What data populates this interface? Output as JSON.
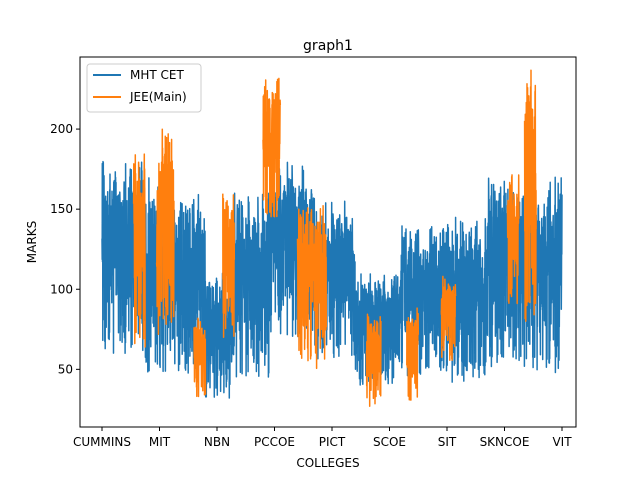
{
  "chart_data": {
    "type": "line",
    "title": "graph1",
    "xlabel": "COLLEGES",
    "ylabel": "MARKS",
    "categories": [
      "CUMMINS",
      "MIT",
      "NBN",
      "PCCOE",
      "PICT",
      "SCOE",
      "SIT",
      "SKNCOE",
      "VIT"
    ],
    "ylim": [
      14,
      245
    ],
    "yticks": [
      50,
      100,
      150,
      200
    ],
    "grid": false,
    "legend_position": "top-left",
    "series": [
      {
        "name": "MHT CET",
        "color": "#1f77b4",
        "segments": [
          {
            "from": 0.0,
            "to": 0.7,
            "low": 60,
            "high": 180
          },
          {
            "from": 0.7,
            "to": 1.3,
            "low": 48,
            "high": 170
          },
          {
            "from": 1.3,
            "to": 1.8,
            "low": 45,
            "high": 160
          },
          {
            "from": 1.8,
            "to": 2.3,
            "low": 32,
            "high": 110
          },
          {
            "from": 2.3,
            "to": 2.9,
            "low": 45,
            "high": 160
          },
          {
            "from": 2.9,
            "to": 3.7,
            "low": 70,
            "high": 180
          },
          {
            "from": 3.7,
            "to": 4.4,
            "low": 55,
            "high": 155
          },
          {
            "from": 4.4,
            "to": 5.2,
            "low": 40,
            "high": 110
          },
          {
            "from": 5.2,
            "to": 6.0,
            "low": 45,
            "high": 140
          },
          {
            "from": 6.0,
            "to": 6.7,
            "low": 42,
            "high": 145
          },
          {
            "from": 6.7,
            "to": 7.5,
            "low": 50,
            "high": 170
          },
          {
            "from": 7.5,
            "to": 8.0,
            "low": 48,
            "high": 172
          }
        ]
      },
      {
        "name": "JEE(Main)",
        "color": "#ff7f0e",
        "segments": [
          {
            "from": 0.55,
            "to": 0.75,
            "low": 62,
            "high": 192
          },
          {
            "from": 0.95,
            "to": 1.25,
            "low": 65,
            "high": 201
          },
          {
            "from": 1.6,
            "to": 1.8,
            "low": 33,
            "high": 82
          },
          {
            "from": 2.1,
            "to": 2.3,
            "low": 60,
            "high": 160
          },
          {
            "from": 2.8,
            "to": 3.1,
            "low": 145,
            "high": 232
          },
          {
            "from": 3.4,
            "to": 3.9,
            "low": 50,
            "high": 153
          },
          {
            "from": 4.6,
            "to": 4.85,
            "low": 26,
            "high": 85
          },
          {
            "from": 5.3,
            "to": 5.5,
            "low": 30,
            "high": 90
          },
          {
            "from": 5.9,
            "to": 6.15,
            "low": 55,
            "high": 110
          },
          {
            "from": 7.05,
            "to": 7.25,
            "low": 90,
            "high": 172
          },
          {
            "from": 7.35,
            "to": 7.55,
            "low": 80,
            "high": 238
          }
        ]
      }
    ]
  }
}
